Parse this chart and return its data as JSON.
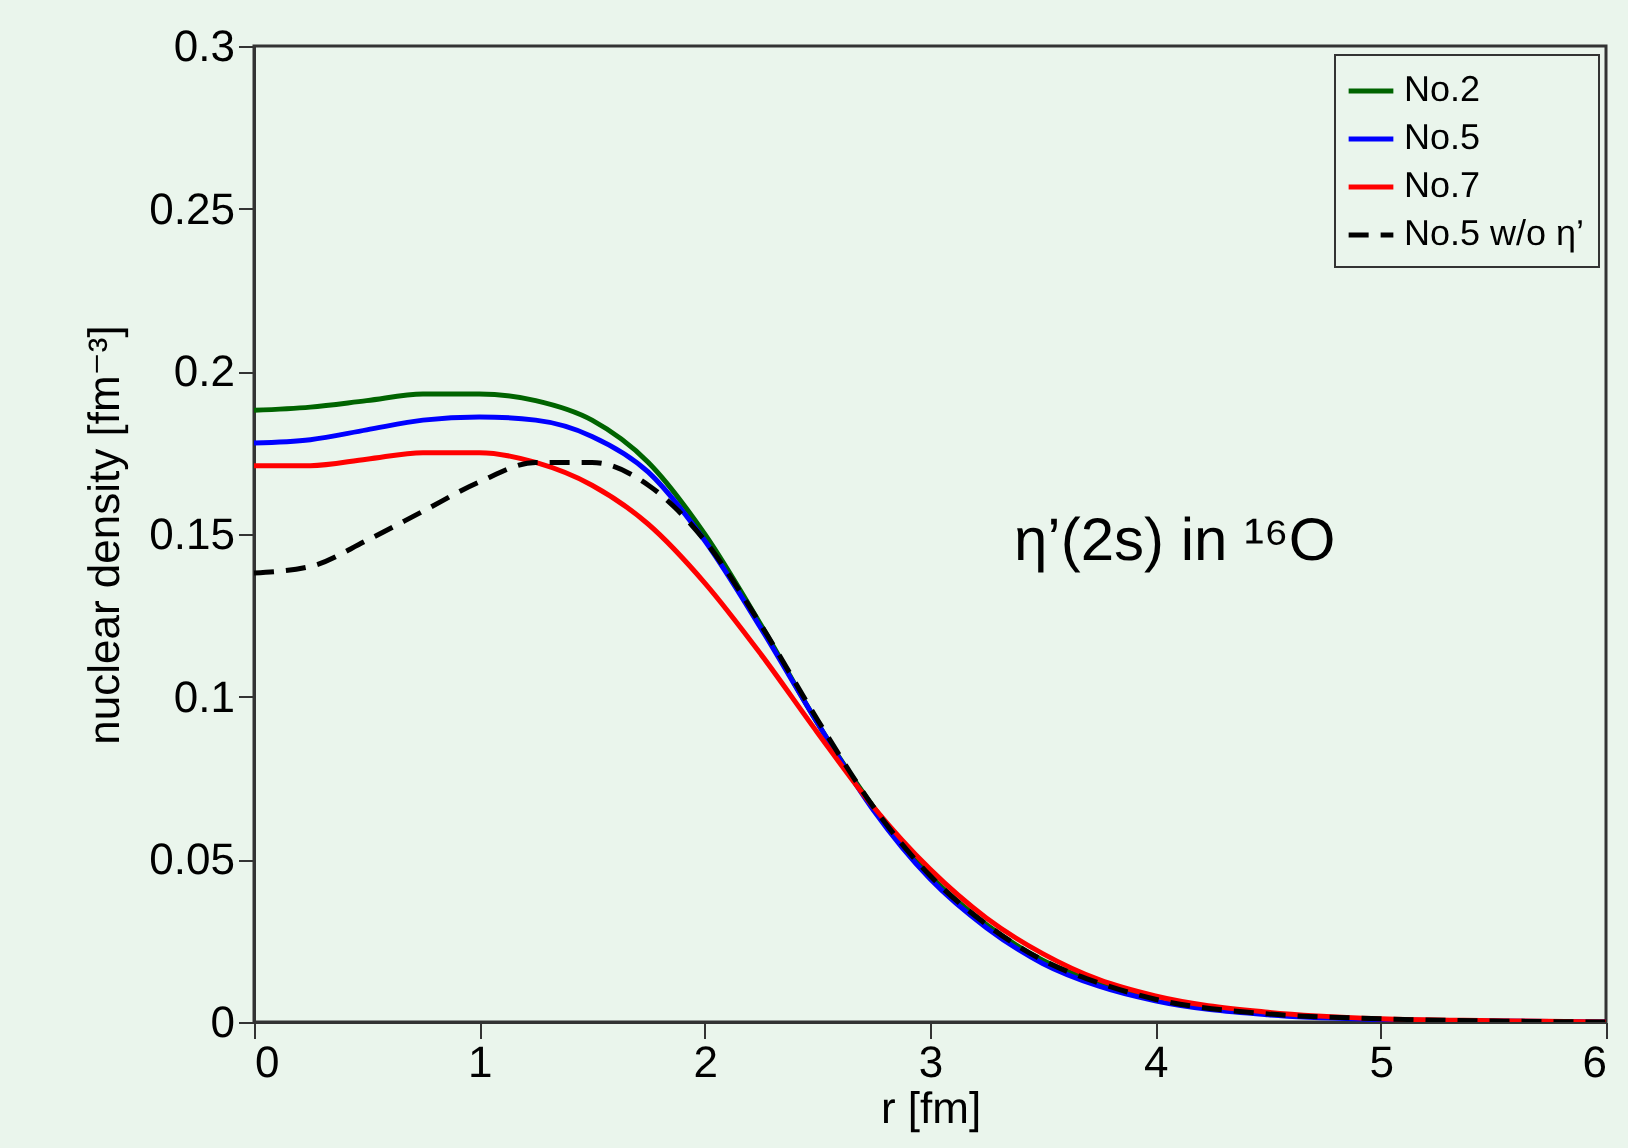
{
  "chart_data": {
    "type": "line",
    "xlabel": "r [fm]",
    "ylabel": "nuclear density [fm⁻³]",
    "annotations": [
      "η’(2s) in ¹⁶O"
    ],
    "x": [
      0,
      0.25,
      0.5,
      0.75,
      1,
      1.25,
      1.5,
      1.75,
      2,
      2.25,
      2.5,
      2.75,
      3,
      3.25,
      3.5,
      3.75,
      4,
      4.5,
      5,
      5.5,
      6
    ],
    "series": [
      {
        "name": "No.2",
        "color": "#006400",
        "line_style": "solid",
        "values": [
          0.188,
          0.189,
          0.191,
          0.193,
          0.193,
          0.191,
          0.185,
          0.172,
          0.15,
          0.122,
          0.092,
          0.066,
          0.045,
          0.03,
          0.019,
          0.012,
          0.007,
          null,
          null,
          null,
          null
        ]
      },
      {
        "name": "No.5",
        "color": "#0000ff",
        "line_style": "solid",
        "values": [
          0.178,
          0.179,
          0.182,
          0.185,
          0.186,
          0.185,
          0.18,
          0.169,
          0.148,
          0.121,
          0.092,
          0.065,
          0.044,
          0.029,
          0.018,
          0.011,
          0.0065,
          0.0022,
          0.0008,
          0.0003,
          0
        ]
      },
      {
        "name": "No.7",
        "color": "#ff0000",
        "line_style": "solid",
        "values": [
          0.171,
          0.171,
          0.173,
          0.175,
          0.175,
          0.172,
          0.165,
          0.153,
          0.135,
          0.113,
          0.089,
          0.066,
          0.047,
          0.032,
          0.021,
          0.013,
          0.008,
          0.003,
          0.001,
          0.0004,
          0
        ]
      },
      {
        "name": "No.5 w/o η’",
        "color": "#000000",
        "line_style": "dashed",
        "values": [
          0.138,
          0.14,
          0.148,
          0.157,
          0.166,
          0.172,
          0.172,
          0.165,
          0.148,
          0.122,
          0.093,
          0.066,
          0.045,
          0.03,
          0.019,
          0.012,
          0.007,
          0.0025,
          0.001,
          0.0003,
          0
        ]
      }
    ],
    "xlim": [
      0,
      6
    ],
    "xticks": [
      0,
      1,
      2,
      3,
      4,
      5,
      6
    ],
    "ylim": [
      0,
      0.3
    ],
    "yticks": [
      0,
      0.05,
      0.1,
      0.15,
      0.2,
      0.25,
      0.3
    ],
    "grid": false,
    "legend": "top right",
    "marker": "none"
  }
}
